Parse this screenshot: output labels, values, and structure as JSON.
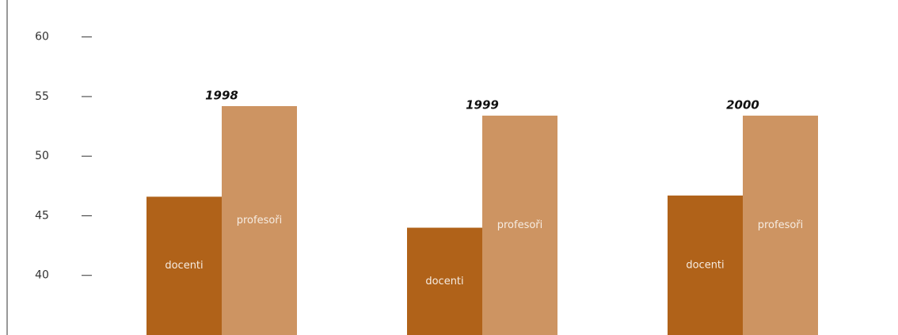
{
  "chart_data": {
    "type": "bar",
    "categories": [
      "1998",
      "1999",
      "2000"
    ],
    "series": [
      {
        "name": "docenti",
        "color": "#b06219",
        "values": [
          46.6,
          44.0,
          46.7
        ]
      },
      {
        "name": "profesoři",
        "color": "#cd9462",
        "values": [
          54.2,
          53.4,
          53.4
        ]
      }
    ],
    "ylim": [
      35,
      63.1
    ],
    "yticks": [
      40,
      45,
      50,
      55,
      60
    ]
  }
}
